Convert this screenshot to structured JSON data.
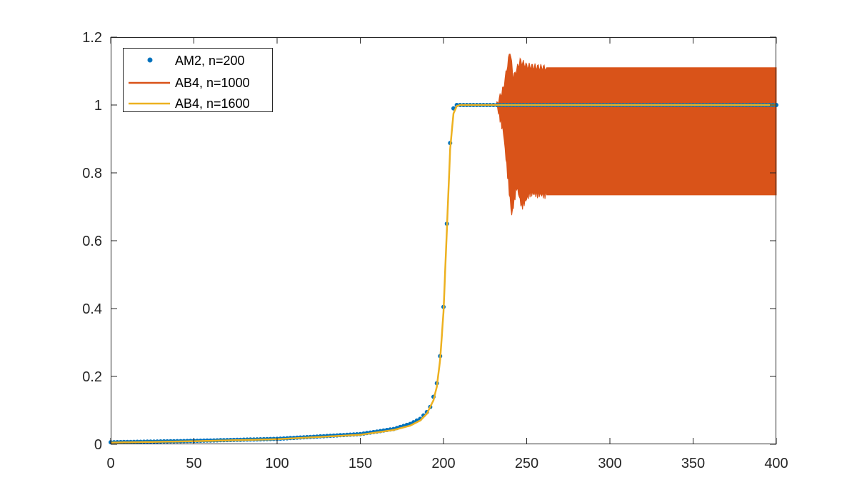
{
  "chart_data": {
    "type": "line",
    "title": "",
    "xlabel": "",
    "ylabel": "",
    "xlim": [
      0,
      400
    ],
    "ylim": [
      0,
      1.2
    ],
    "grid": false,
    "legend_position": "upper-left",
    "x_ticks": [
      "0",
      "50",
      "100",
      "150",
      "200",
      "250",
      "300",
      "350",
      "400"
    ],
    "y_ticks": [
      "0",
      "0.2",
      "0.4",
      "0.6",
      "0.8",
      "1",
      "1.2"
    ],
    "series": [
      {
        "name": "AM2, n=200",
        "style": "markers",
        "color": "#0072BD",
        "description": "Logistic-like curve sampled every 2 units: near 0 until ~180, rising steeply 190-206, flat at 1 from ~208 to 400",
        "points": [
          [
            0,
            0.006
          ],
          [
            50,
            0.01
          ],
          [
            100,
            0.016
          ],
          [
            150,
            0.03
          ],
          [
            170,
            0.045
          ],
          [
            180,
            0.06
          ],
          [
            186,
            0.075
          ],
          [
            188,
            0.085
          ],
          [
            190,
            0.095
          ],
          [
            192,
            0.11
          ],
          [
            194,
            0.14
          ],
          [
            196,
            0.18
          ],
          [
            198,
            0.26
          ],
          [
            200,
            0.405
          ],
          [
            202,
            0.65
          ],
          [
            204,
            0.888
          ],
          [
            206,
            0.99
          ],
          [
            208,
            1.0
          ],
          [
            220,
            1.0
          ],
          [
            230,
            1.0
          ],
          [
            400,
            1.0
          ]
        ]
      },
      {
        "name": "AB4, n=1000",
        "style": "line",
        "color": "#D95319",
        "description": "Follows the solution until ~232, then unstable oscillation: envelope peaks at 1.16 (x≈240) and dips to 0.675 (x≈241), settling into a band 0.735–1.11 through x=400",
        "envelope_upper": [
          [
            232,
            1.0
          ],
          [
            236,
            1.05
          ],
          [
            240,
            1.16
          ],
          [
            242,
            1.08
          ],
          [
            246,
            1.13
          ],
          [
            250,
            1.115
          ],
          [
            260,
            1.11
          ],
          [
            400,
            1.11
          ]
        ],
        "envelope_lower": [
          [
            232,
            1.0
          ],
          [
            236,
            0.92
          ],
          [
            240,
            0.72
          ],
          [
            241,
            0.675
          ],
          [
            244,
            0.76
          ],
          [
            247,
            0.7
          ],
          [
            252,
            0.74
          ],
          [
            260,
            0.735
          ],
          [
            400,
            0.735
          ]
        ]
      },
      {
        "name": "AB4, n=1600",
        "style": "line",
        "color": "#EDB120",
        "points": [
          [
            0,
            0.005
          ],
          [
            50,
            0.009
          ],
          [
            100,
            0.015
          ],
          [
            150,
            0.028
          ],
          [
            170,
            0.042
          ],
          [
            180,
            0.055
          ],
          [
            186,
            0.07
          ],
          [
            190,
            0.09
          ],
          [
            194,
            0.13
          ],
          [
            196,
            0.17
          ],
          [
            198,
            0.25
          ],
          [
            200,
            0.39
          ],
          [
            202,
            0.63
          ],
          [
            204,
            0.87
          ],
          [
            206,
            0.975
          ],
          [
            208,
            0.997
          ],
          [
            210,
            1.0
          ],
          [
            400,
            1.0
          ]
        ]
      }
    ]
  },
  "axes": {
    "x_ticks": [
      "0",
      "50",
      "100",
      "150",
      "200",
      "250",
      "300",
      "350",
      "400"
    ],
    "y_ticks": [
      "0",
      "0.2",
      "0.4",
      "0.6",
      "0.8",
      "1",
      "1.2"
    ]
  },
  "legend": {
    "items": [
      {
        "label": "AM2, n=200",
        "color": "#0072BD",
        "marker": "dot"
      },
      {
        "label": "AB4, n=1000",
        "color": "#D95319",
        "marker": "line"
      },
      {
        "label": "AB4, n=1600",
        "color": "#EDB120",
        "marker": "line"
      }
    ]
  }
}
